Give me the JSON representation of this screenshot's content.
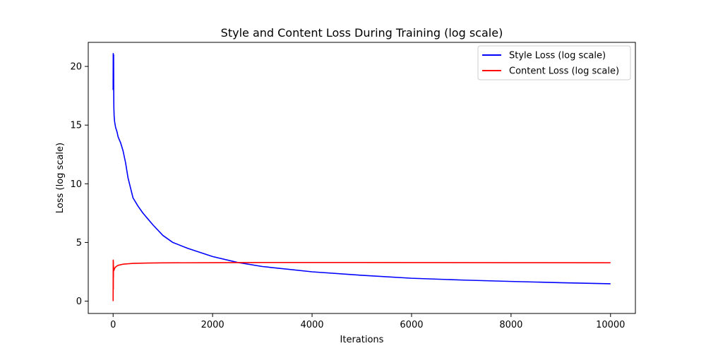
{
  "chart_data": {
    "type": "line",
    "title": "Style and Content Loss During Training (log scale)",
    "xlabel": "Iterations",
    "ylabel": "Loss (log scale)",
    "xlim": [
      -500,
      10500
    ],
    "ylim": [
      -1.05,
      22.05
    ],
    "xticks": [
      0,
      2000,
      4000,
      6000,
      8000,
      10000
    ],
    "yticks": [
      0,
      5,
      10,
      15,
      20
    ],
    "grid": false,
    "legend_position": "upper right",
    "series": [
      {
        "name": "Style Loss (log scale)",
        "color": "#0000ff",
        "x": [
          0,
          2,
          5,
          8,
          10,
          12,
          15,
          20,
          30,
          50,
          80,
          100,
          150,
          200,
          250,
          300,
          400,
          500,
          600,
          700,
          800,
          1000,
          1200,
          1500,
          2000,
          2500,
          3000,
          4000,
          5000,
          6000,
          7000,
          8000,
          9000,
          10000
        ],
        "y": [
          18.0,
          21.1,
          20.9,
          18.5,
          21.0,
          18.0,
          16.5,
          15.8,
          15.3,
          14.8,
          14.4,
          14.0,
          13.5,
          12.8,
          11.8,
          10.5,
          8.8,
          8.1,
          7.5,
          7.0,
          6.5,
          5.6,
          5.0,
          4.5,
          3.8,
          3.3,
          2.95,
          2.5,
          2.2,
          1.95,
          1.8,
          1.68,
          1.57,
          1.48
        ]
      },
      {
        "name": "Content Loss (log scale)",
        "color": "#ff0000",
        "x": [
          0,
          2,
          4,
          5,
          6,
          8,
          10,
          15,
          30,
          60,
          100,
          200,
          400,
          700,
          1000,
          2000,
          3000,
          5000,
          8000,
          10000
        ],
        "y": [
          0.0,
          3.5,
          1.0,
          3.4,
          2.0,
          3.0,
          2.8,
          2.6,
          2.8,
          2.95,
          3.05,
          3.15,
          3.22,
          3.25,
          3.26,
          3.28,
          3.29,
          3.29,
          3.28,
          3.27
        ]
      }
    ]
  }
}
